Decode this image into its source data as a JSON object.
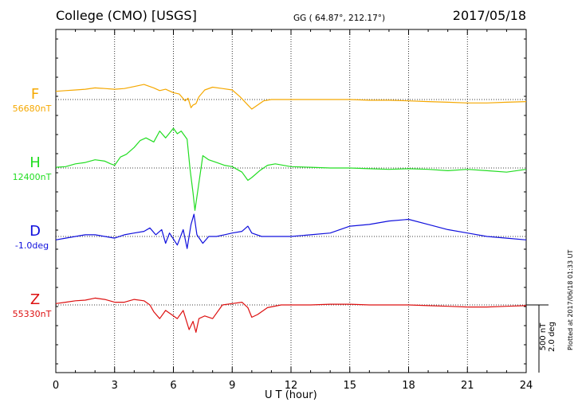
{
  "header": {
    "title": "College (CMO)  [USGS]",
    "coords": "GG ( 64.87°, 212.17°)",
    "date": "2017/05/18"
  },
  "side": {
    "plotted": "Plotted at 2017/06/18 01:33 UT",
    "scale_nt": "500 nT",
    "scale_deg": "2.0 deg"
  },
  "chart_data": {
    "type": "line",
    "xlabel": "U T (hour)",
    "xlim": [
      0,
      24
    ],
    "xticks": [
      0,
      3,
      6,
      9,
      12,
      15,
      18,
      21,
      24
    ],
    "scale": "500 nT / 2.0 deg per scale bar",
    "series": [
      {
        "name": "F",
        "baseline_label": "56680nT",
        "color": "#f5a800",
        "unit": "nT",
        "x": [
          0,
          0.5,
          1,
          1.5,
          2,
          2.5,
          3,
          3.5,
          4,
          4.5,
          5,
          5.3,
          5.6,
          6,
          6.3,
          6.6,
          6.75,
          6.9,
          7,
          7.15,
          7.3,
          7.6,
          8,
          8.5,
          9,
          9.4,
          9.8,
          10,
          10.3,
          10.6,
          11,
          11.5,
          12,
          13,
          14,
          15,
          16,
          17,
          18,
          19,
          20,
          21,
          22,
          23,
          24
        ],
        "y": [
          60,
          65,
          70,
          75,
          85,
          80,
          75,
          80,
          95,
          110,
          85,
          65,
          75,
          50,
          40,
          -10,
          10,
          -60,
          -40,
          -30,
          20,
          70,
          90,
          80,
          70,
          20,
          -40,
          -70,
          -40,
          -10,
          0,
          0,
          0,
          0,
          0,
          0,
          -5,
          -5,
          -10,
          -15,
          -20,
          -25,
          -25,
          -20,
          -15
        ]
      },
      {
        "name": "H",
        "baseline_label": "12400nT",
        "color": "#22dd22",
        "unit": "nT",
        "x": [
          0,
          0.5,
          1,
          1.5,
          2,
          2.5,
          2.8,
          3,
          3.3,
          3.6,
          4,
          4.3,
          4.6,
          5,
          5.3,
          5.6,
          6,
          6.2,
          6.4,
          6.7,
          6.85,
          7,
          7.1,
          7.2,
          7.35,
          7.5,
          7.8,
          8.2,
          8.6,
          9,
          9.5,
          9.8,
          10,
          10.4,
          10.8,
          11.2,
          12,
          13,
          14,
          15,
          16,
          17,
          18,
          19,
          20,
          21,
          22,
          23,
          24
        ],
        "y": [
          5,
          10,
          30,
          40,
          60,
          50,
          30,
          20,
          80,
          100,
          150,
          200,
          220,
          190,
          270,
          220,
          290,
          250,
          270,
          210,
          -10,
          -180,
          -310,
          -210,
          -60,
          90,
          60,
          40,
          20,
          10,
          -30,
          -90,
          -70,
          -20,
          20,
          30,
          10,
          5,
          0,
          0,
          -5,
          -10,
          -5,
          -10,
          -20,
          -10,
          -20,
          -30,
          -10
        ]
      },
      {
        "name": "D",
        "baseline_label": "-1.0deg",
        "color": "#1010dd",
        "unit": "deg",
        "x": [
          0,
          0.5,
          1,
          1.5,
          2,
          2.5,
          3,
          3.5,
          4,
          4.5,
          4.8,
          5.1,
          5.4,
          5.6,
          5.8,
          6.2,
          6.5,
          6.7,
          6.9,
          7.05,
          7.2,
          7.5,
          7.8,
          8.2,
          8.6,
          9,
          9.5,
          9.8,
          10,
          10.5,
          11,
          12,
          13,
          14,
          15,
          16,
          17,
          18,
          19,
          20,
          21,
          22,
          23,
          24
        ],
        "y": [
          -0.1,
          -0.05,
          0.0,
          0.05,
          0.05,
          0.0,
          -0.05,
          0.05,
          0.1,
          0.15,
          0.25,
          0.05,
          0.2,
          -0.2,
          0.1,
          -0.25,
          0.2,
          -0.35,
          0.35,
          0.65,
          0.05,
          -0.2,
          0.0,
          0.0,
          0.05,
          0.1,
          0.15,
          0.3,
          0.1,
          0.0,
          0.0,
          0.0,
          0.05,
          0.1,
          0.3,
          0.35,
          0.45,
          0.5,
          0.35,
          0.2,
          0.1,
          0.0,
          -0.05,
          -0.1
        ]
      },
      {
        "name": "Z",
        "baseline_label": "55330nT",
        "color": "#dd1010",
        "unit": "nT",
        "x": [
          0,
          0.5,
          1,
          1.5,
          2,
          2.5,
          3,
          3.5,
          4,
          4.5,
          4.8,
          5,
          5.3,
          5.6,
          6,
          6.2,
          6.5,
          6.8,
          7,
          7.15,
          7.3,
          7.6,
          8,
          8.5,
          9,
          9.5,
          9.8,
          10,
          10.3,
          10.8,
          11.5,
          12,
          13,
          14,
          15,
          16,
          17,
          18,
          19,
          20,
          21,
          22,
          23,
          24
        ],
        "y": [
          10,
          20,
          30,
          35,
          50,
          40,
          20,
          20,
          40,
          30,
          0,
          -50,
          -100,
          -40,
          -80,
          -100,
          -40,
          -180,
          -120,
          -200,
          -100,
          -80,
          -100,
          0,
          10,
          20,
          -20,
          -90,
          -70,
          -20,
          0,
          0,
          0,
          5,
          5,
          0,
          0,
          0,
          -5,
          -10,
          -15,
          -15,
          -10,
          -5
        ]
      }
    ]
  }
}
